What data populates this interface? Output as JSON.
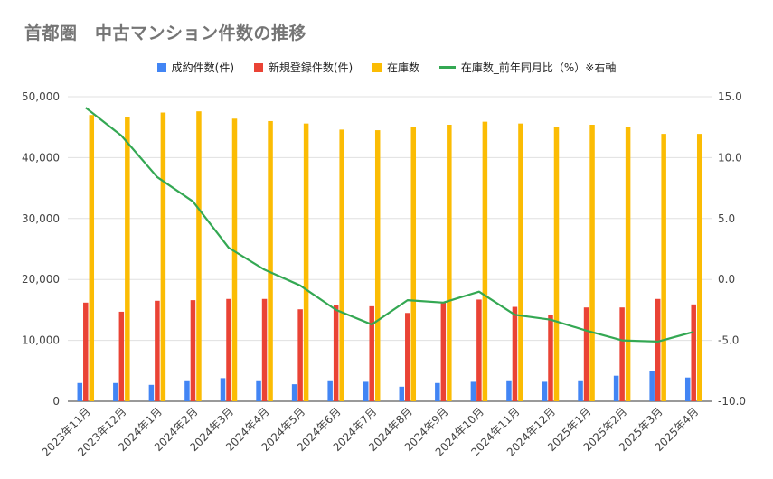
{
  "title": "首都圏　中古マンション件数の推移",
  "colors": {
    "contracts": "#4285f4",
    "new_listings": "#ea4335",
    "inventory": "#fbbc04",
    "inventory_yoy": "#34a853",
    "grid": "#e0e0e0",
    "axis_text": "#444444"
  },
  "chart_data": {
    "type": "bar",
    "categories": [
      "2023年11月",
      "2023年12月",
      "2024年1月",
      "2024年2月",
      "2024年3月",
      "2024年4月",
      "2024年5月",
      "2024年6月",
      "2024年7月",
      "2024年8月",
      "2024年9月",
      "2024年10月",
      "2024年11月",
      "2024年12月",
      "2025年1月",
      "2025年2月",
      "2025年3月",
      "2025年4月"
    ],
    "series": [
      {
        "name": "成約件数(件)",
        "type": "bar",
        "axis": "left",
        "color": "#4285f4",
        "values": [
          3000,
          3000,
          2700,
          3300,
          3800,
          3300,
          2800,
          3300,
          3200,
          2400,
          3000,
          3200,
          3300,
          3200,
          3300,
          4200,
          4900,
          3900
        ]
      },
      {
        "name": "新規登録件数(件)",
        "type": "bar",
        "axis": "left",
        "color": "#ea4335",
        "values": [
          16200,
          14700,
          16500,
          16600,
          16800,
          16800,
          15100,
          15800,
          15600,
          14500,
          16200,
          16700,
          15500,
          14200,
          15400,
          15400,
          16800,
          15900
        ]
      },
      {
        "name": "在庫数",
        "type": "bar",
        "axis": "left",
        "color": "#fbbc04",
        "values": [
          47000,
          46600,
          47400,
          47600,
          46400,
          46000,
          45600,
          44600,
          44500,
          45100,
          45400,
          45900,
          45600,
          45000,
          45400,
          45100,
          43900,
          43900
        ]
      },
      {
        "name": "在庫数_前年同月比（%）※右軸",
        "type": "line",
        "axis": "right",
        "color": "#34a853",
        "values": [
          14.1,
          11.8,
          8.4,
          6.4,
          2.6,
          0.8,
          -0.5,
          -2.5,
          -3.7,
          -1.7,
          -1.9,
          -1.0,
          -2.9,
          -3.3,
          -4.2,
          -5.0,
          -5.1,
          -4.3
        ]
      }
    ],
    "y_left": {
      "min": 0,
      "max": 50000,
      "ticks": [
        "0",
        "10,000",
        "20,000",
        "30,000",
        "40,000",
        "50,000"
      ],
      "tick_values": [
        0,
        10000,
        20000,
        30000,
        40000,
        50000
      ]
    },
    "y_right": {
      "min": -10,
      "max": 15,
      "ticks": [
        "-10.0",
        "-5.0",
        "0.0",
        "5.0",
        "10.0",
        "15.0"
      ],
      "tick_values": [
        -10,
        -5,
        0,
        5,
        10,
        15
      ]
    },
    "grid": true,
    "legend_position": "top"
  }
}
